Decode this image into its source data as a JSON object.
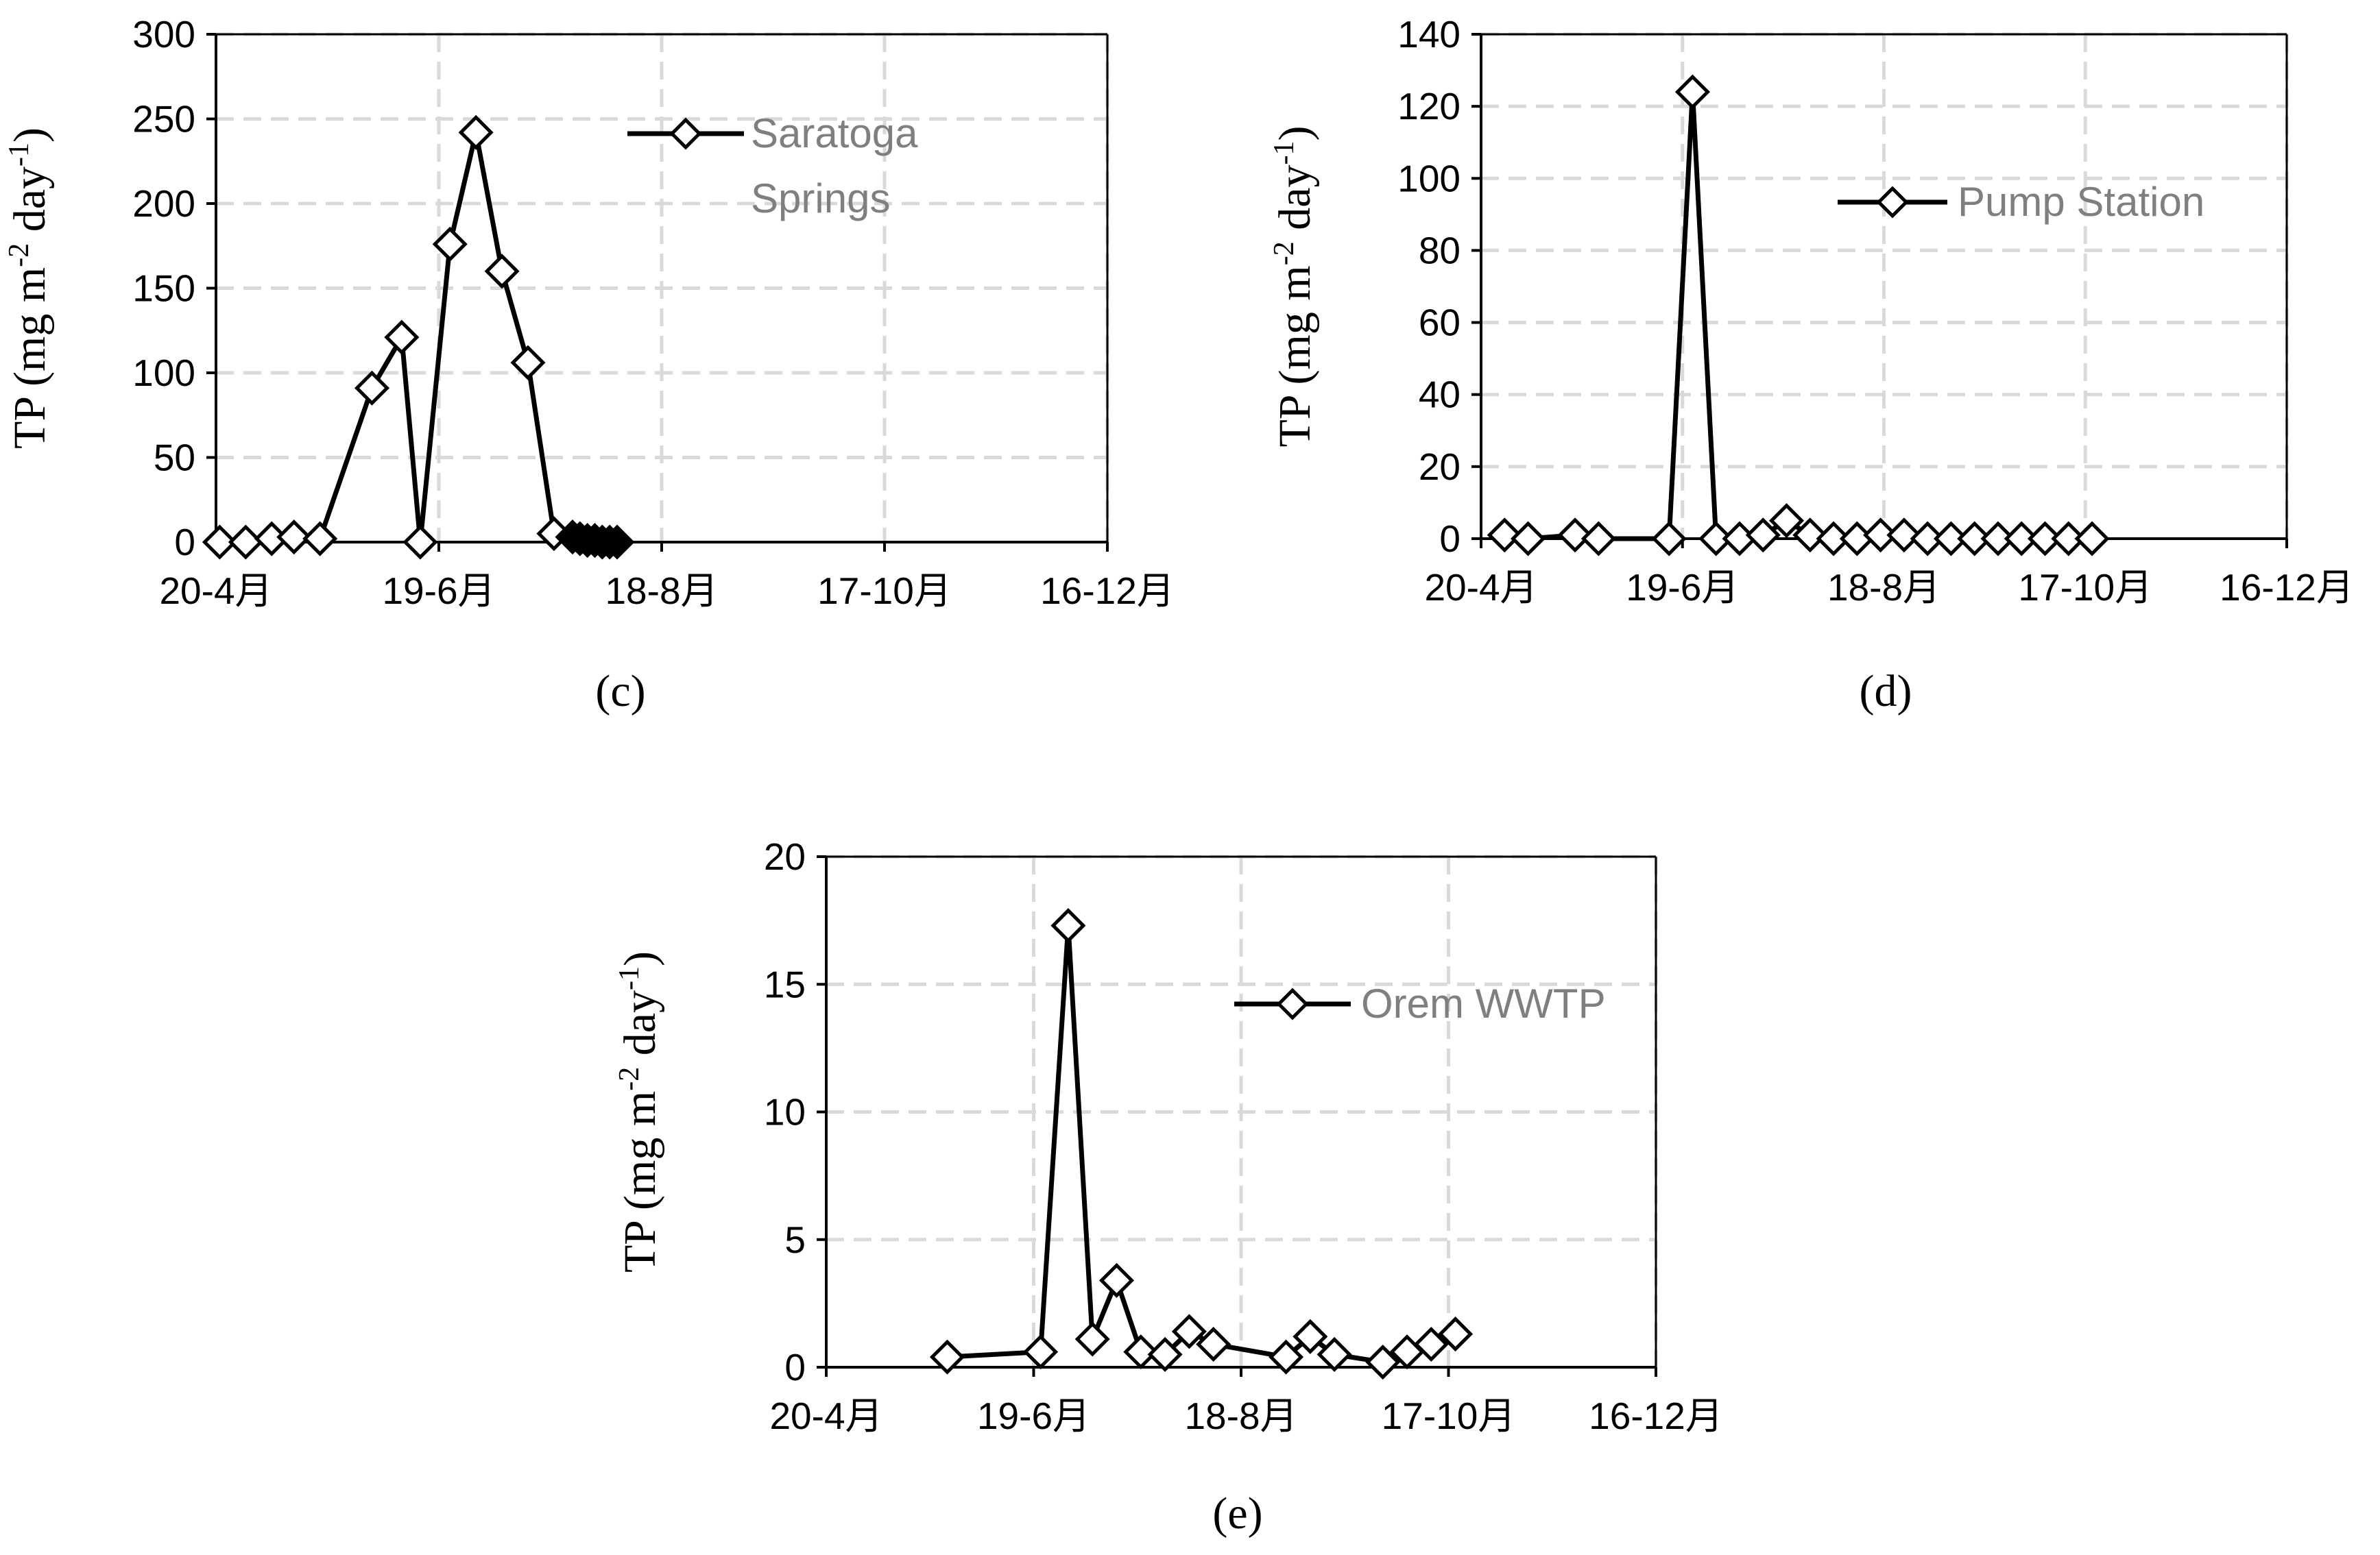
{
  "chart_data": [
    {
      "id": "c",
      "type": "line",
      "subtitle": "(c)",
      "ylabel_main": "TP (mg m",
      "ylabel_sup1": "-2",
      "ylabel_mid": " day",
      "ylabel_sup2": "-1",
      "ylabel_end": ")",
      "legend": "Saratoga Springs",
      "legend_lines": [
        "Saratoga",
        "Springs"
      ],
      "xlim": [
        0,
        240
      ],
      "ylim": [
        0,
        300
      ],
      "yticks": [
        0,
        50,
        100,
        150,
        200,
        250,
        300
      ],
      "xticks": [
        {
          "value": 0,
          "label": "20-4月"
        },
        {
          "value": 60,
          "label": "19-6月"
        },
        {
          "value": 120,
          "label": "18-8月"
        },
        {
          "value": 180,
          "label": "17-10月"
        },
        {
          "value": 240,
          "label": "16-12月"
        }
      ],
      "series": [
        {
          "name": "Saratoga Springs",
          "x": [
            1,
            8,
            15,
            21,
            28,
            42,
            50,
            55,
            63,
            70,
            77,
            84,
            91
          ],
          "y": [
            0,
            0,
            2,
            3,
            2,
            91,
            121,
            0,
            176,
            242,
            160,
            106,
            5
          ],
          "filled_x": [
            96,
            98,
            100,
            102,
            104,
            106,
            108
          ],
          "filled_y": [
            3,
            2,
            1,
            1,
            0,
            0,
            0
          ]
        }
      ]
    },
    {
      "id": "d",
      "type": "line",
      "subtitle": "(d)",
      "ylabel_main": "TP (mg m",
      "ylabel_sup1": "-2",
      "ylabel_mid": " day",
      "ylabel_sup2": "-1",
      "ylabel_end": ")",
      "legend": "Pump Station",
      "xlim": [
        0,
        240
      ],
      "ylim": [
        0,
        140
      ],
      "yticks": [
        0,
        20,
        40,
        60,
        80,
        100,
        120,
        140
      ],
      "xticks": [
        {
          "value": 0,
          "label": "20-4月"
        },
        {
          "value": 60,
          "label": "19-6月"
        },
        {
          "value": 120,
          "label": "18-8月"
        },
        {
          "value": 180,
          "label": "17-10月"
        },
        {
          "value": 240,
          "label": "16-12月"
        }
      ],
      "series": [
        {
          "name": "Pump Station",
          "x": [
            7,
            14,
            28,
            35,
            56,
            63,
            70,
            77,
            84,
            91,
            98,
            105,
            112,
            119,
            126,
            133,
            140,
            147,
            154,
            161,
            168,
            175,
            182
          ],
          "y": [
            1,
            0,
            1,
            0,
            0,
            124,
            0,
            0,
            1,
            5,
            1,
            0,
            0,
            1,
            1,
            0,
            0,
            0,
            0,
            0,
            0,
            0,
            0
          ]
        }
      ]
    },
    {
      "id": "e",
      "type": "line",
      "subtitle": "(e)",
      "ylabel_main": "TP (mg m",
      "ylabel_sup1": "-2",
      "ylabel_mid": " day",
      "ylabel_sup2": "-1",
      "ylabel_end": ")",
      "legend": "Orem WWTP",
      "xlim": [
        0,
        240
      ],
      "ylim": [
        0,
        20
      ],
      "yticks": [
        0,
        5,
        10,
        15,
        20
      ],
      "xticks": [
        {
          "value": 0,
          "label": "20-4月"
        },
        {
          "value": 60,
          "label": "19-6月"
        },
        {
          "value": 120,
          "label": "18-8月"
        },
        {
          "value": 180,
          "label": "17-10月"
        },
        {
          "value": 240,
          "label": "16-12月"
        }
      ],
      "series": [
        {
          "name": "Orem WWTP",
          "x": [
            35,
            62,
            70,
            77,
            84,
            91,
            98,
            105,
            112,
            133,
            140,
            147,
            161,
            168,
            175,
            182
          ],
          "y": [
            0.4,
            0.6,
            17.3,
            1.1,
            3.4,
            0.6,
            0.5,
            1.4,
            0.9,
            0.4,
            1.2,
            0.5,
            0.2,
            0.6,
            0.9,
            1.3
          ]
        }
      ]
    }
  ]
}
